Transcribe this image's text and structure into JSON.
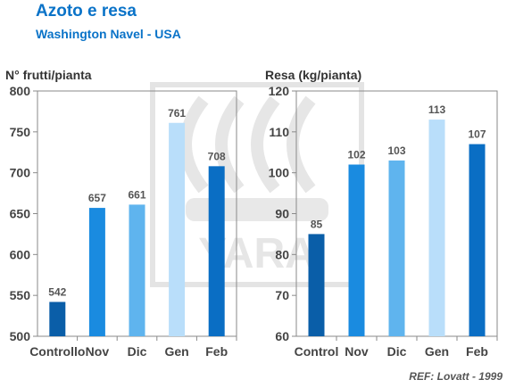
{
  "header": {
    "title": "Azoto e resa",
    "subtitle": "Washington Navel - USA"
  },
  "watermark": {
    "text": "YARA"
  },
  "footer": {
    "reference": "REF: Lovatt - 1999"
  },
  "colors": {
    "dark_blue": "#0a5ea8",
    "mid_blue": "#1a8be0",
    "light_blue": "#5fb4ee",
    "pale_blue": "#b9defa",
    "axis": "#8a8a8a",
    "label": "#444444"
  },
  "chart_data": [
    {
      "type": "bar",
      "title": "",
      "ylabel": "N° frutti/pianta",
      "xlabel": "",
      "categories": [
        "Controllo",
        "Nov",
        "Dic",
        "Gen",
        "Feb"
      ],
      "values": [
        542,
        657,
        661,
        761,
        708
      ],
      "ylim": [
        500,
        800
      ],
      "yticks": [
        500,
        550,
        600,
        650,
        700,
        750,
        800
      ],
      "bar_colors": [
        "#0a5ea8",
        "#1a8be0",
        "#5fb4ee",
        "#b9defa",
        "#0a6ec4"
      ],
      "grid": false
    },
    {
      "type": "bar",
      "title": "",
      "ylabel": "Resa (kg/pianta)",
      "xlabel": "",
      "categories": [
        "Control",
        "Nov",
        "Dic",
        "Gen",
        "Feb"
      ],
      "values": [
        85,
        102,
        103,
        113,
        107
      ],
      "ylim": [
        60,
        120
      ],
      "yticks": [
        60,
        70,
        80,
        90,
        100,
        110,
        120
      ],
      "bar_colors": [
        "#0a5ea8",
        "#1a8be0",
        "#5fb4ee",
        "#b9defa",
        "#0a6ec4"
      ],
      "grid": false
    }
  ]
}
